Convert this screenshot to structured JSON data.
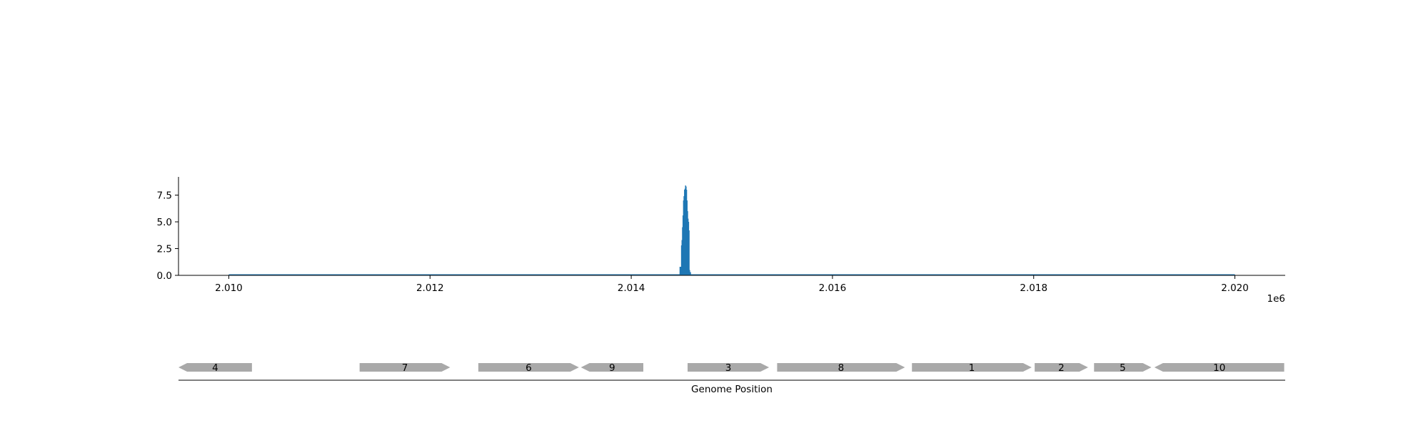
{
  "chart_data": [
    {
      "type": "area",
      "title": "",
      "xlabel": "",
      "ylabel": "",
      "xlim": [
        2009500,
        2020500
      ],
      "ylim": [
        0,
        9.2
      ],
      "x_offset_label": "1e6",
      "x_ticks": [
        2010000,
        2012000,
        2014000,
        2016000,
        2018000,
        2020000
      ],
      "x_tick_labels": [
        "2.010",
        "2.012",
        "2.014",
        "2.016",
        "2.018",
        "2.020"
      ],
      "y_ticks": [
        0,
        2.5,
        5,
        7.5
      ],
      "y_tick_labels": [
        "0.0",
        "2.5",
        "5.0",
        "7.5"
      ],
      "baseline_range": [
        2010000,
        2020000
      ],
      "series": [
        {
          "color": "#1f77b4",
          "x": [
            2014480,
            2014490,
            2014495,
            2014500,
            2014505,
            2014510,
            2014515,
            2014520,
            2014525,
            2014530,
            2014535,
            2014540,
            2014545,
            2014550,
            2014555,
            2014560,
            2014565,
            2014570,
            2014575,
            2014580
          ],
          "y": [
            0.8,
            0.8,
            2.8,
            3.3,
            4.5,
            5.6,
            7.0,
            7.4,
            8.0,
            8.1,
            8.4,
            8.3,
            8.0,
            7.0,
            6.0,
            5.3,
            5.0,
            4.2,
            0.5,
            0.3
          ]
        }
      ],
      "grid": false
    },
    {
      "type": "gene-track",
      "xlabel": "Genome Position",
      "xlim": [
        2009500,
        2020500
      ],
      "genes": [
        {
          "label": "4",
          "start": 2009500,
          "end": 2010230,
          "strand": "-"
        },
        {
          "label": "7",
          "start": 2011300,
          "end": 2012200,
          "strand": "+"
        },
        {
          "label": "6",
          "start": 2012480,
          "end": 2013480,
          "strand": "+"
        },
        {
          "label": "9",
          "start": 2013500,
          "end": 2014120,
          "strand": "-"
        },
        {
          "label": "3",
          "start": 2014560,
          "end": 2015370,
          "strand": "+"
        },
        {
          "label": "8",
          "start": 2015450,
          "end": 2016720,
          "strand": "+"
        },
        {
          "label": "1",
          "start": 2016790,
          "end": 2017980,
          "strand": "+"
        },
        {
          "label": "2",
          "start": 2018010,
          "end": 2018540,
          "strand": "+"
        },
        {
          "label": "5",
          "start": 2018600,
          "end": 2019170,
          "strand": "+"
        },
        {
          "label": "10",
          "start": 2019200,
          "end": 2020490,
          "strand": "-"
        }
      ],
      "gene_color": "#a9a9a9"
    }
  ]
}
